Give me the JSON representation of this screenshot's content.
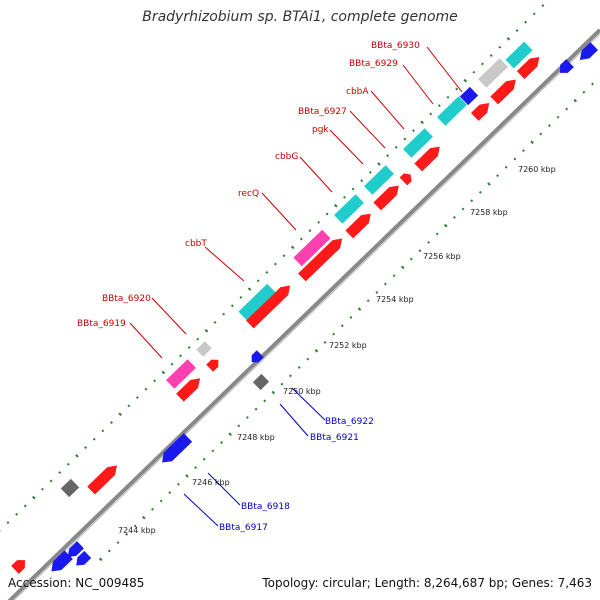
{
  "title": "Bradyrhizobium sp. BTAi1, complete genome",
  "footer": {
    "accession": "Accession: NC_009485",
    "summary": "Topology: circular; Length: 8,264,687 bp; Genes: 7,463"
  },
  "colors": {
    "forward_cds": "#ff1a1a",
    "reverse_cds": "#1a1aee",
    "rna": "#20cccc",
    "pseudo": "#ff40b0",
    "other": "#c8c8c8",
    "misc": "#666666",
    "upper_label": "#cc0000",
    "lower_label": "#0000cc",
    "tick": "#2a7a2a",
    "backbone": "#888888"
  },
  "scale_labels": [
    "7244 kbp",
    "7246 kbp",
    "7248 kbp",
    "7250 kbp",
    "7252 kbp",
    "7254 kbp",
    "7256 kbp",
    "7258 kbp",
    "7260 kbp"
  ],
  "upper_labels": [
    "BBta_6930",
    "BBta_6929",
    "cbbA",
    "BBta_6927",
    "pgk",
    "cbbG",
    "recQ",
    "cbbT",
    "BBta_6920",
    "BBta_6919"
  ],
  "lower_labels": [
    "BBta_6922",
    "BBta_6921",
    "BBta_6918",
    "BBta_6917"
  ]
}
